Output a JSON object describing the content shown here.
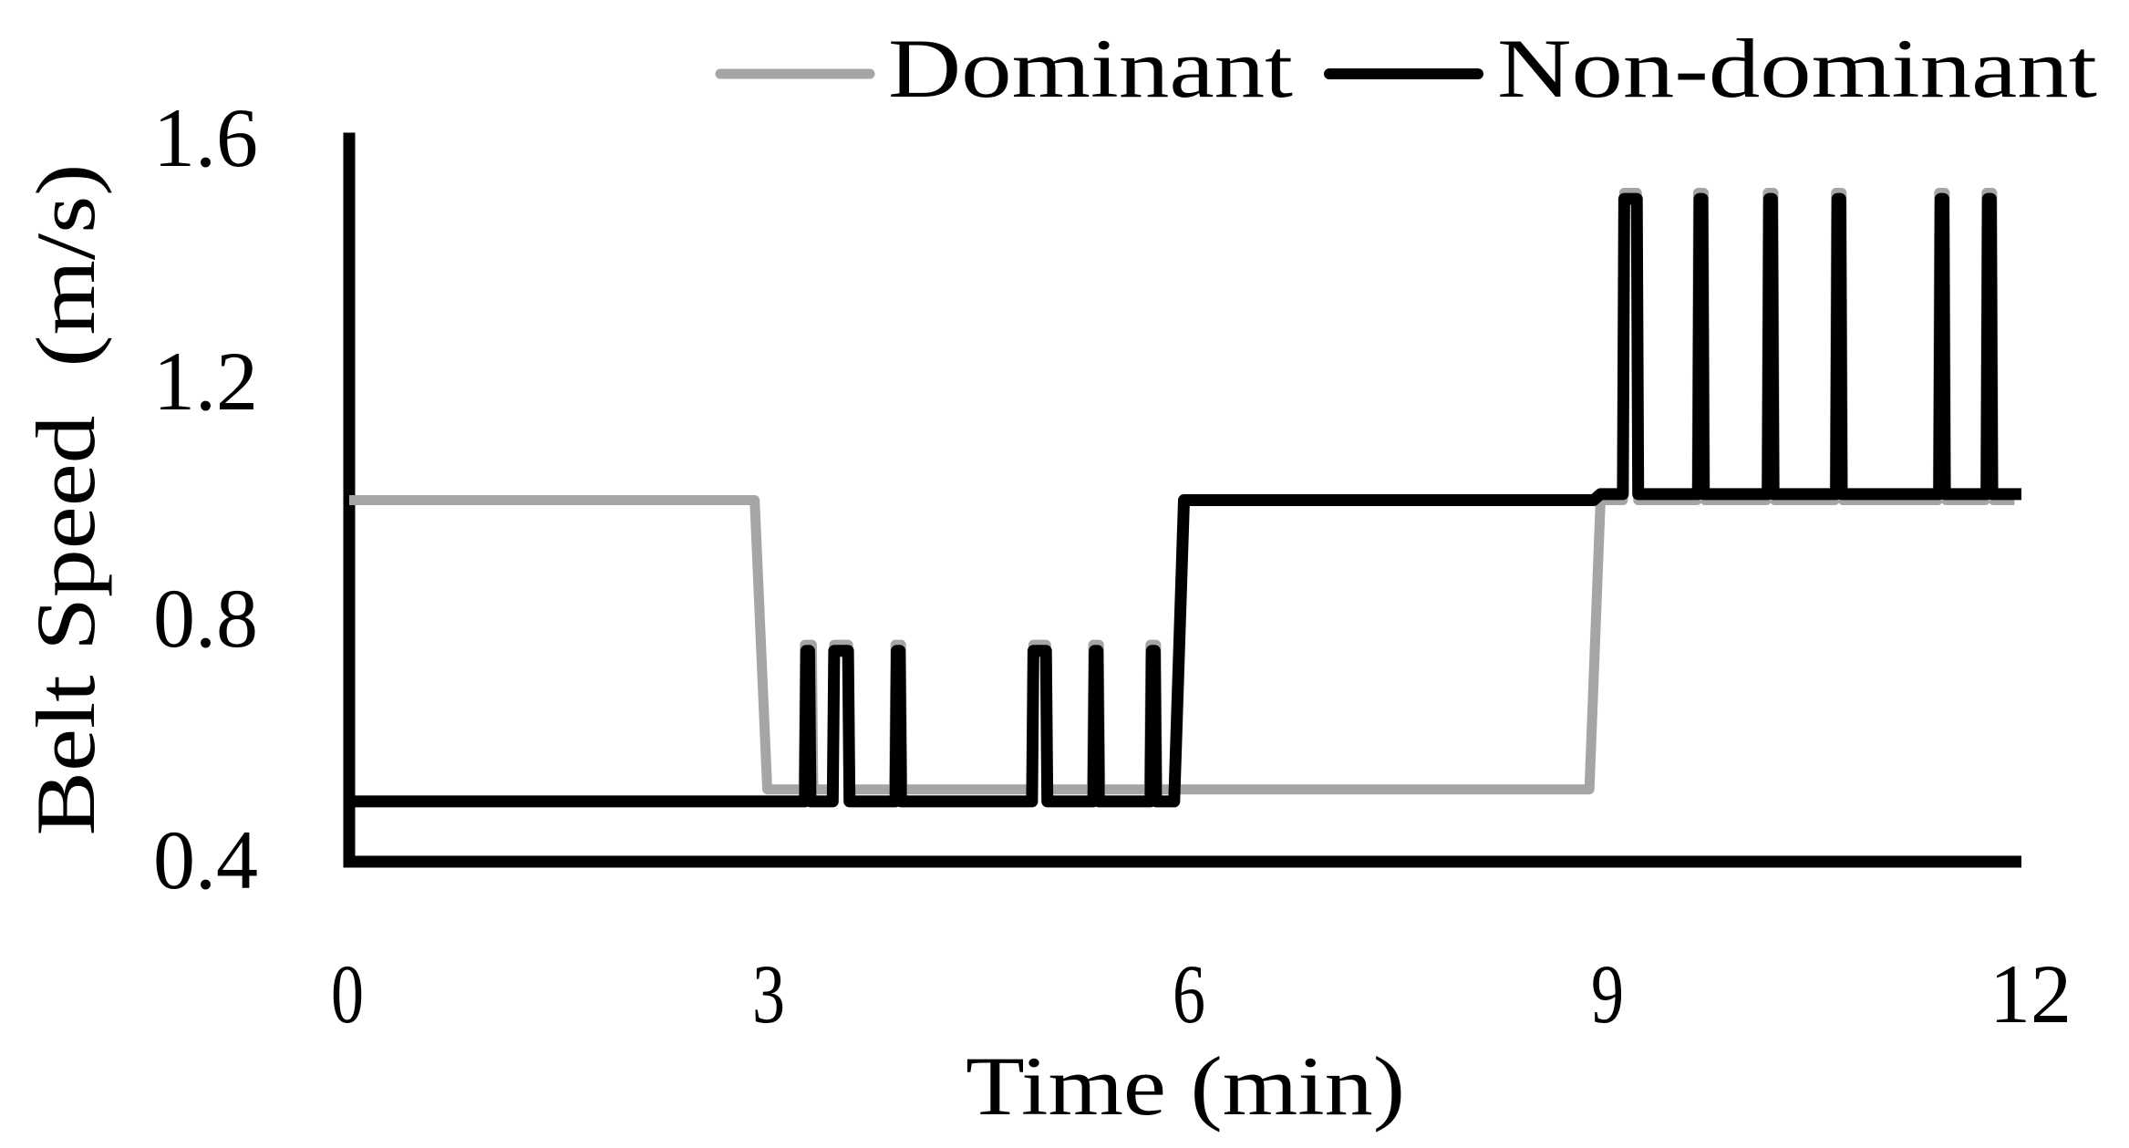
{
  "chart_data": {
    "type": "line",
    "title": "",
    "xlabel": "Time (min)",
    "ylabel": "Belt Speed  (m/s)",
    "xlim": [
      0,
      12
    ],
    "ylim": [
      0.4,
      1.6
    ],
    "x_ticks": [
      "0",
      "3",
      "6",
      "9",
      "12"
    ],
    "y_ticks": [
      "1.6",
      "1.2",
      "0.8",
      "0.4"
    ],
    "grid": false,
    "legend_position": "top-right",
    "legend": [
      {
        "name": "Dominant",
        "color": "#a5a5a5"
      },
      {
        "name": "Non-dominant",
        "color": "#000000"
      }
    ],
    "series": [
      {
        "name": "Dominant",
        "color": "#a5a5a5",
        "x": [
          0,
          2.91,
          3.0,
          3.26,
          3.27,
          3.32,
          3.33,
          3.47,
          3.48,
          3.58,
          3.59,
          3.91,
          3.92,
          3.96,
          3.97,
          4.9,
          4.91,
          5.0,
          5.01,
          5.33,
          5.34,
          5.38,
          5.39,
          5.74,
          5.75,
          5.79,
          5.8,
          8.9,
          8.98,
          9.14,
          9.15,
          9.24,
          9.25,
          9.67,
          9.68,
          9.72,
          9.73,
          10.17,
          10.18,
          10.22,
          10.23,
          10.66,
          10.67,
          10.71,
          10.72,
          11.4,
          11.41,
          11.45,
          11.46,
          11.74,
          11.75,
          11.79,
          11.8,
          11.95
        ],
        "y": [
          1.0,
          1.0,
          0.52,
          0.52,
          0.76,
          0.76,
          0.52,
          0.52,
          0.76,
          0.76,
          0.52,
          0.52,
          0.76,
          0.76,
          0.52,
          0.52,
          0.76,
          0.76,
          0.52,
          0.52,
          0.76,
          0.76,
          0.52,
          0.52,
          0.76,
          0.76,
          0.52,
          0.52,
          1.0,
          1.0,
          1.51,
          1.51,
          1.0,
          1.0,
          1.51,
          1.51,
          1.0,
          1.0,
          1.51,
          1.51,
          1.0,
          1.0,
          1.51,
          1.51,
          1.0,
          1.0,
          1.51,
          1.51,
          1.0,
          1.0,
          1.51,
          1.51,
          1.0,
          1.0
        ]
      },
      {
        "name": "Non-dominant",
        "color": "#000000",
        "x": [
          0,
          3.27,
          3.28,
          3.3,
          3.31,
          3.47,
          3.48,
          3.58,
          3.59,
          3.92,
          3.93,
          3.95,
          3.96,
          4.9,
          4.91,
          5.0,
          5.01,
          5.34,
          5.35,
          5.37,
          5.38,
          5.75,
          5.76,
          5.78,
          5.79,
          5.92,
          5.99,
          8.93,
          8.98,
          9.14,
          9.15,
          9.24,
          9.25,
          9.68,
          9.69,
          9.71,
          9.72,
          10.18,
          10.19,
          10.21,
          10.22,
          10.67,
          10.68,
          10.7,
          10.71,
          11.41,
          11.42,
          11.44,
          11.45,
          11.75,
          11.76,
          11.78,
          11.79,
          12.0
        ],
        "y": [
          0.5,
          0.5,
          0.75,
          0.75,
          0.5,
          0.5,
          0.75,
          0.75,
          0.5,
          0.5,
          0.75,
          0.75,
          0.5,
          0.5,
          0.75,
          0.75,
          0.5,
          0.5,
          0.75,
          0.75,
          0.5,
          0.5,
          0.75,
          0.75,
          0.5,
          0.5,
          1.0,
          1.0,
          1.01,
          1.01,
          1.5,
          1.5,
          1.01,
          1.01,
          1.5,
          1.5,
          1.01,
          1.01,
          1.5,
          1.5,
          1.01,
          1.01,
          1.5,
          1.5,
          1.01,
          1.01,
          1.5,
          1.5,
          1.01,
          1.01,
          1.5,
          1.5,
          1.01,
          1.01
        ]
      }
    ]
  }
}
